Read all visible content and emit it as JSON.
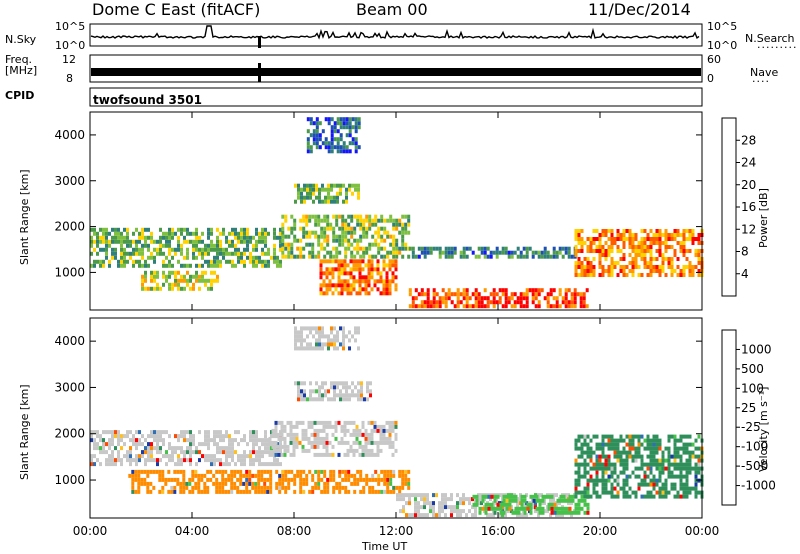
{
  "header": {
    "station": "Dome C East (fitACF)",
    "beam": "Beam 00",
    "date": "11/Dec/2014"
  },
  "panels": {
    "nsky": {
      "label": "N.Sky",
      "tick_high": "10^5",
      "tick_low": "10^0",
      "right_high": "10^5",
      "right_low": "10^0",
      "right_label": "N.Search",
      "right_dots": "·········"
    },
    "freq": {
      "label_top": "Freq.",
      "label_unit": "[MHz]",
      "tick_high": "12",
      "tick_low": "8",
      "right_high": "60",
      "right_low": "0",
      "right_label": "Nave",
      "right_dots": "····"
    },
    "cpid": {
      "label": "CPID",
      "name": "twofsound 3501"
    }
  },
  "chart_data": [
    {
      "type": "heatmap",
      "panel": "power",
      "ylabel": "Slant Range [km]",
      "xlabel": "",
      "x_ticks": [
        "00:00",
        "04:00",
        "08:00",
        "12:00",
        "16:00",
        "20:00",
        "00:00"
      ],
      "x_range_hours": [
        0,
        24
      ],
      "y_ticks": [
        1000,
        2000,
        3000,
        4000
      ],
      "y_range_km": [
        180,
        4500
      ],
      "colorbar": {
        "label": "Power [dB]",
        "ticks": [
          4,
          8,
          12,
          16,
          20,
          24,
          28
        ],
        "range": [
          0,
          32
        ],
        "colors": [
          "#1414ff",
          "#1e50b4",
          "#2f7f7a",
          "#4a9a4a",
          "#7fc040",
          "#ffd200",
          "#ff9a00",
          "#ff5a00",
          "#ff0000"
        ]
      },
      "echo_regions": [
        {
          "t0": 0.0,
          "t1": 7.5,
          "r0": 1100,
          "r1": 1900,
          "level": 14
        },
        {
          "t0": 7.5,
          "t1": 12.5,
          "r0": 1300,
          "r1": 2200,
          "level": 16
        },
        {
          "t0": 12.5,
          "t1": 19.0,
          "r0": 1300,
          "r1": 1500,
          "level": 9
        },
        {
          "t0": 19.0,
          "t1": 24.0,
          "r0": 900,
          "r1": 1900,
          "level": 24
        },
        {
          "t0": 12.5,
          "t1": 19.5,
          "r0": 220,
          "r1": 600,
          "level": 28
        },
        {
          "t0": 8.0,
          "t1": 10.5,
          "r0": 2500,
          "r1": 2900,
          "level": 14
        },
        {
          "t0": 8.5,
          "t1": 10.5,
          "r0": 3600,
          "r1": 4300,
          "level": 7
        },
        {
          "t0": 2.0,
          "t1": 5.0,
          "r0": 600,
          "r1": 1000,
          "level": 18
        },
        {
          "t0": 9.0,
          "t1": 12.0,
          "r0": 500,
          "r1": 1200,
          "level": 26
        }
      ]
    },
    {
      "type": "heatmap",
      "panel": "velocity",
      "ylabel": "Slant Range [km]",
      "xlabel": "Time UT",
      "x_ticks": [
        "00:00",
        "04:00",
        "08:00",
        "12:00",
        "16:00",
        "20:00",
        "00:00"
      ],
      "x_range_hours": [
        0,
        24
      ],
      "y_ticks": [
        1000,
        2000,
        3000,
        4000
      ],
      "y_range_km": [
        180,
        4500
      ],
      "colorbar": {
        "label": "Velocity [m s⁻¹]",
        "ticks": [
          "1000",
          "500",
          "100",
          "25",
          "-25",
          "-100",
          "-500",
          "-1000"
        ],
        "colors": [
          "#1a3aa8",
          "#2f6fb3",
          "#2f8f5a",
          "#46c24a",
          "#c8c8c8",
          "#ffc020",
          "#ff8c00",
          "#ff4a00",
          "#ff0000"
        ]
      },
      "echo_regions": [
        {
          "t0": 0.0,
          "t1": 7.5,
          "r0": 1300,
          "r1": 2000,
          "level": "grey"
        },
        {
          "t0": 7.0,
          "t1": 12.0,
          "r0": 1500,
          "r1": 2200,
          "level": "grey"
        },
        {
          "t0": 1.5,
          "t1": 12.5,
          "r0": 700,
          "r1": 1200,
          "level": "orange"
        },
        {
          "t0": 12.0,
          "t1": 19.0,
          "r0": 200,
          "r1": 650,
          "level": "grey"
        },
        {
          "t0": 15.0,
          "t1": 19.5,
          "r0": 250,
          "r1": 600,
          "level": "green"
        },
        {
          "t0": 19.0,
          "t1": 24.0,
          "r0": 600,
          "r1": 1900,
          "level": "darkgreen"
        },
        {
          "t0": 8.0,
          "t1": 11.0,
          "r0": 2700,
          "r1": 3100,
          "level": "grey"
        },
        {
          "t0": 8.0,
          "t1": 10.5,
          "r0": 3800,
          "r1": 4300,
          "level": "grey"
        }
      ]
    }
  ]
}
